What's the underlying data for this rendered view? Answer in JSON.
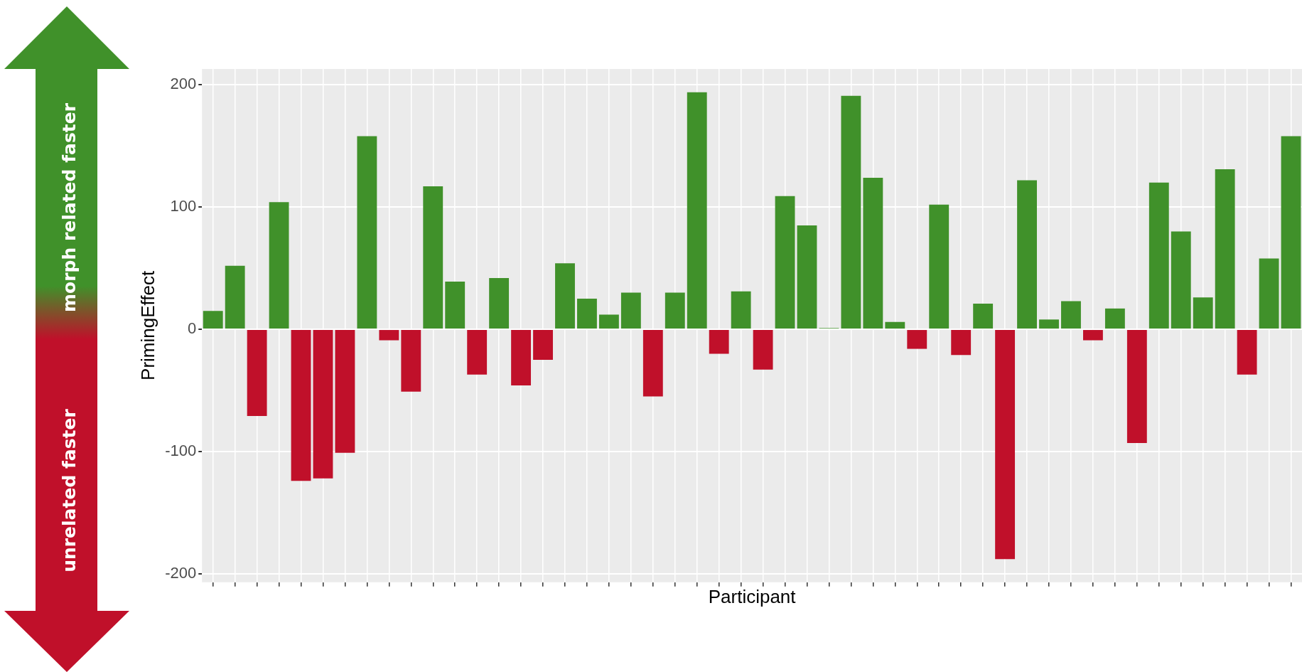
{
  "chart_data": {
    "type": "bar",
    "xlabel": "Participant",
    "ylabel": "PrimingEffect",
    "annotations": [
      "morph related faster",
      "unrelated faster"
    ],
    "categories": [
      null,
      null,
      null,
      null,
      null,
      null,
      null,
      null,
      null,
      null,
      null,
      null,
      null,
      null,
      null,
      null,
      null,
      null,
      null,
      null,
      null,
      null,
      null,
      null,
      null,
      null,
      null,
      null,
      null,
      null,
      null,
      null,
      null,
      null,
      null,
      null,
      null,
      null,
      null,
      null,
      null,
      null,
      null,
      null,
      null,
      null,
      null,
      null,
      null,
      null
    ],
    "values": [
      15,
      52,
      -71,
      104,
      -124,
      -122,
      -101,
      158,
      -9,
      -51,
      117,
      39,
      -37,
      42,
      -46,
      -25,
      54,
      25,
      12,
      30,
      -55,
      30,
      194,
      -20,
      31,
      -33,
      109,
      85,
      1,
      191,
      124,
      6,
      -16,
      102,
      -21,
      21,
      -188,
      122,
      8,
      23,
      -9,
      17,
      -93,
      120,
      80,
      26,
      131,
      -37,
      58,
      158
    ],
    "colors": [
      "#40912a",
      "#40912a",
      "#c0102a",
      "#40912a",
      "#c0102a",
      "#c0102a",
      "#c0102a",
      "#40912a",
      "#c0102a",
      "#c0102a",
      "#40912a",
      "#40912a",
      "#c0102a",
      "#40912a",
      "#c0102a",
      "#c0102a",
      "#40912a",
      "#40912a",
      "#40912a",
      "#40912a",
      "#c0102a",
      "#40912a",
      "#40912a",
      "#c0102a",
      "#40912a",
      "#c0102a",
      "#40912a",
      "#40912a",
      "#40912a",
      "#40912a",
      "#40912a",
      "#40912a",
      "#c0102a",
      "#40912a",
      "#c0102a",
      "#40912a",
      "#c0102a",
      "#40912a",
      "#40912a",
      "#40912a",
      "#c0102a",
      "#40912a",
      "#c0102a",
      "#40912a",
      "#40912a",
      "#40912a",
      "#40912a",
      "#c0102a",
      "#40912a",
      "#40912a"
    ],
    "ylim": [
      -207,
      213
    ],
    "yticks": [
      -200,
      -100,
      0,
      100,
      200
    ],
    "grid": true,
    "tick_labels": "y"
  }
}
